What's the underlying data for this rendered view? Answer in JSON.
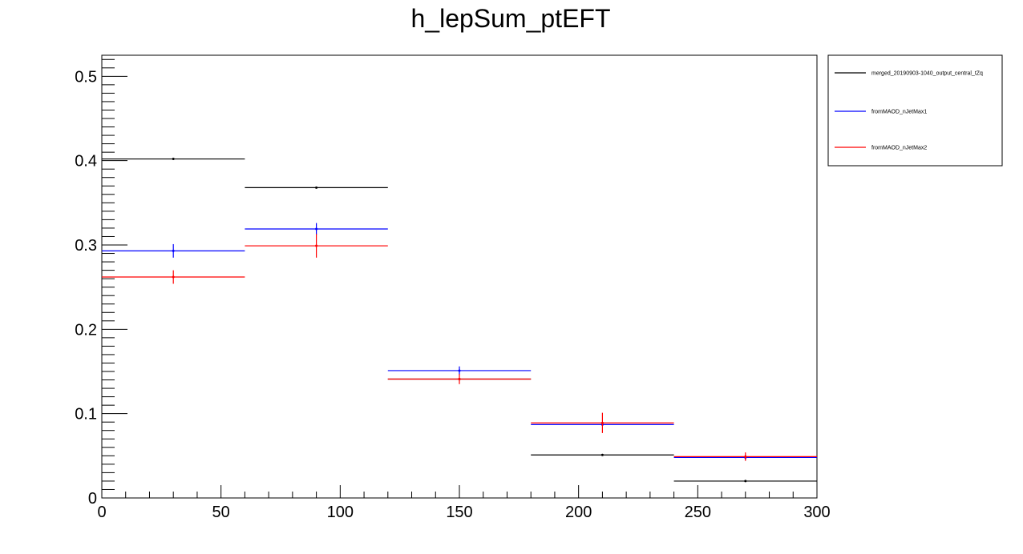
{
  "chart_data": {
    "type": "histogram",
    "title": "h_lepSum_ptEFT",
    "xlabel": "",
    "ylabel": "",
    "xlim": [
      0,
      300
    ],
    "ylim": [
      0,
      0.525
    ],
    "bin_edges": [
      0,
      60,
      120,
      180,
      240,
      300
    ],
    "x_ticks": [
      0,
      50,
      100,
      150,
      200,
      250,
      300
    ],
    "x_tick_labels": [
      "0",
      "50",
      "100",
      "150",
      "200",
      "250",
      "300"
    ],
    "y_ticks": [
      0,
      0.1,
      0.2,
      0.3,
      0.4,
      0.5
    ],
    "y_tick_labels": [
      "0",
      "0.1",
      "0.2",
      "0.3",
      "0.4",
      "0.5"
    ],
    "grid": false,
    "legend_position": "right-outside-top",
    "series": [
      {
        "name": "merged_20190903-1040_output_central_tZq",
        "color": "#000000",
        "values": [
          0.402,
          0.368,
          0.141,
          0.051,
          0.02
        ],
        "errors": [
          0.0,
          0.0,
          0.0,
          0.0,
          0.0
        ]
      },
      {
        "name": "fromMAOD_nJetMax1",
        "color": "#0000ff",
        "values": [
          0.293,
          0.319,
          0.151,
          0.087,
          0.048
        ],
        "errors": [
          0.008,
          0.007,
          0.005,
          0.0,
          0.003
        ]
      },
      {
        "name": "fromMAOD_nJetMax2",
        "color": "#ff0000",
        "values": [
          0.262,
          0.299,
          0.141,
          0.089,
          0.049
        ],
        "errors": [
          0.008,
          0.014,
          0.006,
          0.012,
          0.005
        ]
      }
    ]
  }
}
